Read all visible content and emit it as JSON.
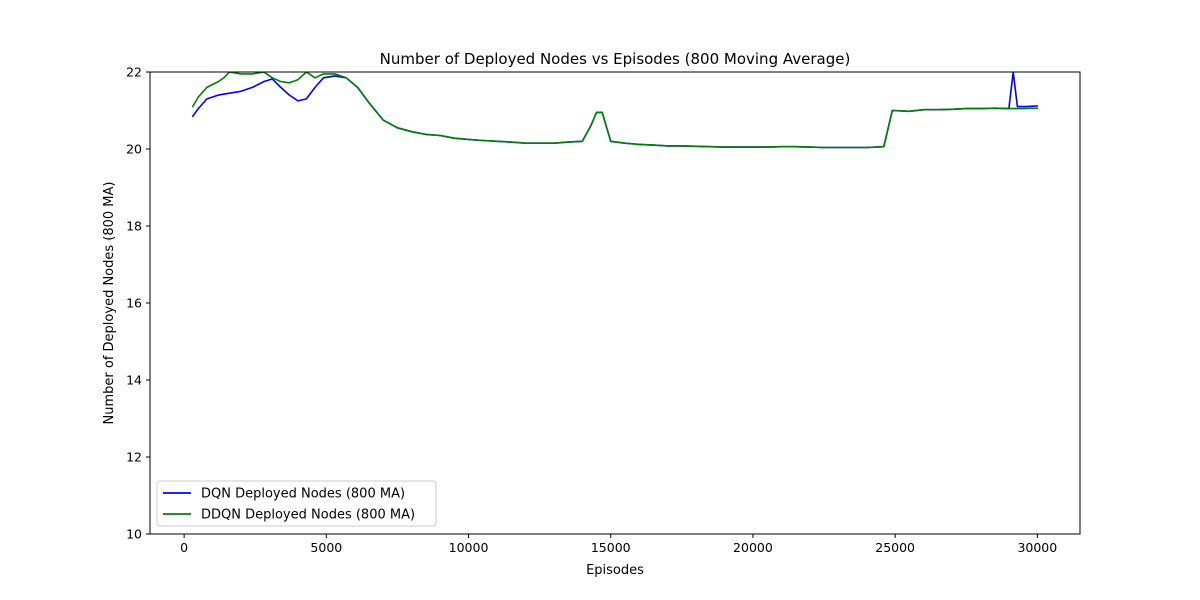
{
  "chart_data": {
    "type": "line",
    "title": "Number of Deployed Nodes vs Episodes (800 Moving Average)",
    "xlabel": "Episodes",
    "ylabel": "Number of Deployed Nodes (800 MA)",
    "xlim": [
      -1200,
      31500
    ],
    "ylim": [
      10,
      22
    ],
    "xticks": [
      0,
      5000,
      10000,
      15000,
      20000,
      25000,
      30000
    ],
    "yticks": [
      10,
      12,
      14,
      16,
      18,
      20,
      22
    ],
    "xtick_labels": [
      "0",
      "5000",
      "10000",
      "15000",
      "20000",
      "25000",
      "30000"
    ],
    "ytick_labels": [
      "10",
      "12",
      "14",
      "16",
      "18",
      "20",
      "22"
    ],
    "grid": false,
    "legend_position": "lower-left",
    "series": [
      {
        "name": "DQN Deployed Nodes (800 MA)",
        "color": "#0000ff",
        "x": [
          300,
          500,
          800,
          1200,
          1600,
          2000,
          2400,
          2800,
          3100,
          3400,
          3700,
          4000,
          4300,
          4600,
          4900,
          5300,
          5700,
          6100,
          6500,
          7000,
          7500,
          8000,
          8500,
          9000,
          9500,
          10000,
          10500,
          11000,
          11500,
          12000,
          12500,
          13000,
          13500,
          14000,
          14300,
          14500,
          14700,
          15000,
          15500,
          16000,
          16500,
          17000,
          17500,
          18000,
          18500,
          19000,
          19500,
          20000,
          20500,
          21000,
          21500,
          22000,
          22500,
          23000,
          23500,
          24000,
          24600,
          24900,
          25500,
          26000,
          26500,
          27000,
          27500,
          28000,
          28500,
          29000,
          29150,
          29300,
          29600,
          30000
        ],
        "y": [
          20.85,
          21.05,
          21.3,
          21.4,
          21.45,
          21.5,
          21.6,
          21.75,
          21.82,
          21.6,
          21.4,
          21.25,
          21.3,
          21.6,
          21.85,
          21.9,
          21.85,
          21.6,
          21.2,
          20.75,
          20.55,
          20.45,
          20.38,
          20.35,
          20.28,
          20.25,
          20.22,
          20.2,
          20.18,
          20.15,
          20.15,
          20.15,
          20.18,
          20.2,
          20.6,
          20.95,
          20.95,
          20.2,
          20.15,
          20.12,
          20.1,
          20.08,
          20.08,
          20.07,
          20.06,
          20.05,
          20.05,
          20.05,
          20.05,
          20.06,
          20.06,
          20.05,
          20.04,
          20.04,
          20.04,
          20.04,
          20.06,
          21.0,
          20.98,
          21.02,
          21.02,
          21.03,
          21.05,
          21.05,
          21.06,
          21.05,
          22.0,
          21.1,
          21.1,
          21.12
        ]
      },
      {
        "name": "DDQN Deployed Nodes (800 MA)",
        "color": "#008000",
        "x": [
          300,
          500,
          800,
          1200,
          1400,
          1600,
          2000,
          2400,
          2800,
          3100,
          3400,
          3700,
          4000,
          4300,
          4600,
          4900,
          5300,
          5700,
          6100,
          6500,
          7000,
          7500,
          8000,
          8500,
          9000,
          9500,
          10000,
          10500,
          11000,
          11500,
          12000,
          12500,
          13000,
          13500,
          14000,
          14300,
          14500,
          14700,
          15000,
          15500,
          16000,
          16500,
          17000,
          17500,
          18000,
          18500,
          19000,
          19500,
          20000,
          20500,
          21000,
          21500,
          22000,
          22500,
          23000,
          23500,
          24000,
          24600,
          24900,
          25500,
          26000,
          26500,
          27000,
          27500,
          28000,
          28500,
          29000,
          29500,
          30000
        ],
        "y": [
          21.1,
          21.35,
          21.6,
          21.75,
          21.85,
          22.0,
          21.95,
          21.95,
          22.0,
          21.85,
          21.75,
          21.72,
          21.8,
          22.0,
          21.85,
          21.95,
          21.95,
          21.85,
          21.6,
          21.2,
          20.75,
          20.55,
          20.45,
          20.38,
          20.35,
          20.28,
          20.25,
          20.22,
          20.2,
          20.18,
          20.15,
          20.15,
          20.15,
          20.18,
          20.2,
          20.6,
          20.95,
          20.95,
          20.2,
          20.15,
          20.12,
          20.1,
          20.08,
          20.08,
          20.07,
          20.06,
          20.05,
          20.05,
          20.05,
          20.05,
          20.06,
          20.06,
          20.05,
          20.04,
          20.04,
          20.04,
          20.04,
          20.06,
          21.0,
          20.98,
          21.02,
          21.02,
          21.03,
          21.05,
          21.05,
          21.06,
          21.05,
          21.05,
          21.06
        ]
      }
    ]
  }
}
